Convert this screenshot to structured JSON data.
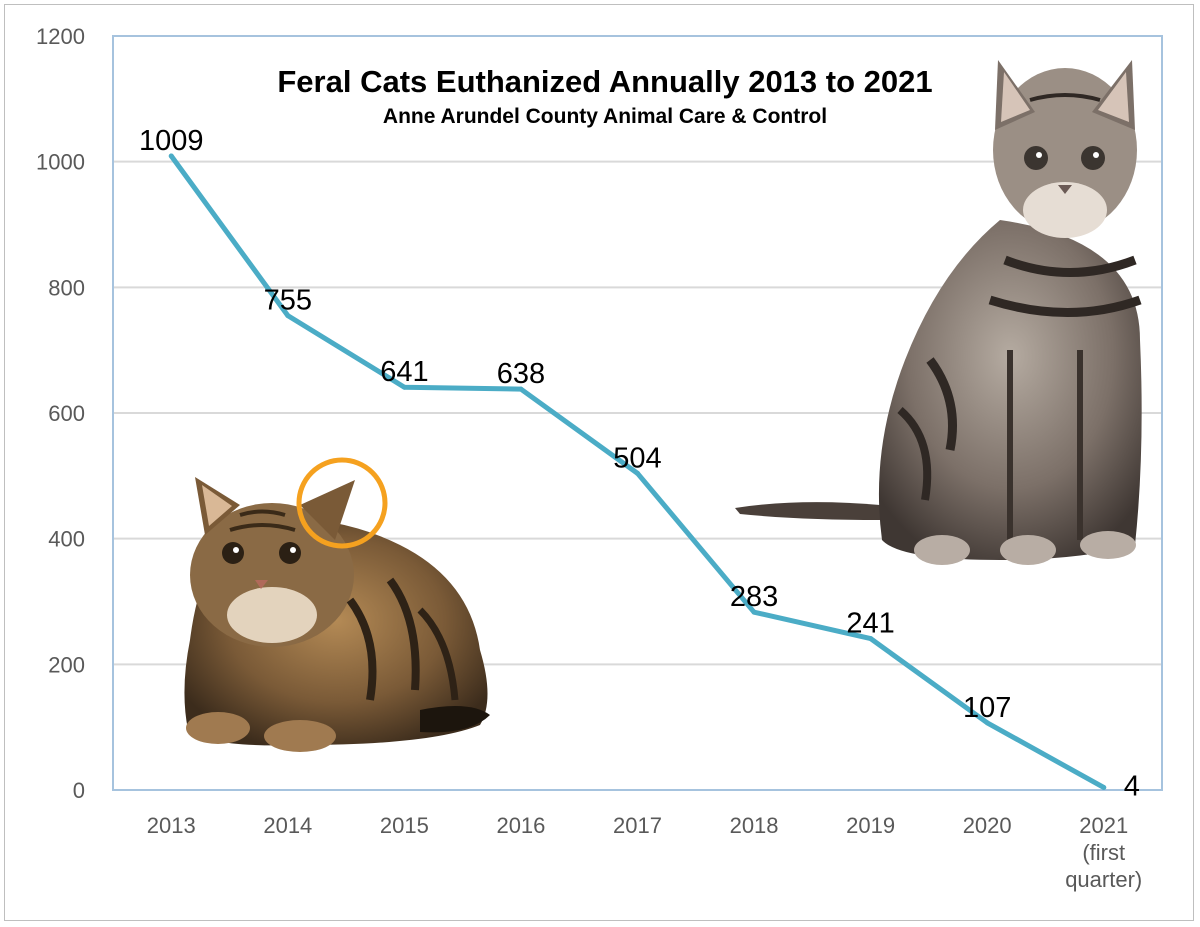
{
  "chart_data": {
    "type": "line",
    "title": "Feral Cats Euthanized Annually 2013 to 2021",
    "subtitle": "Anne Arundel County Animal Care & Control",
    "xlabel": "",
    "ylabel": "",
    "categories": [
      [
        "2013"
      ],
      [
        "2014"
      ],
      [
        "2015"
      ],
      [
        "2016"
      ],
      [
        "2017"
      ],
      [
        "2018"
      ],
      [
        "2019"
      ],
      [
        "2020"
      ],
      [
        "2021",
        "(first",
        "quarter)"
      ]
    ],
    "values": [
      1009,
      755,
      641,
      638,
      504,
      283,
      241,
      107,
      4
    ],
    "data_labels": [
      "1009",
      "755",
      "641",
      "638",
      "504",
      "283",
      "241",
      "107",
      "4"
    ],
    "ylim": [
      0,
      1200
    ],
    "yticks": [
      0,
      200,
      400,
      600,
      800,
      1000,
      1200
    ],
    "grid": true,
    "legend": "none",
    "colors": {
      "line": "#4bacc6",
      "grid": "#d9d9d9",
      "plot_border": "#a6c3de"
    }
  },
  "decorations": {
    "images": [
      "tabby-cat-lying-image",
      "tabby-cat-sitting-image"
    ],
    "ear_tip_marker": "orange-circle",
    "ear_tip_marker_color": "#f5a11f"
  }
}
